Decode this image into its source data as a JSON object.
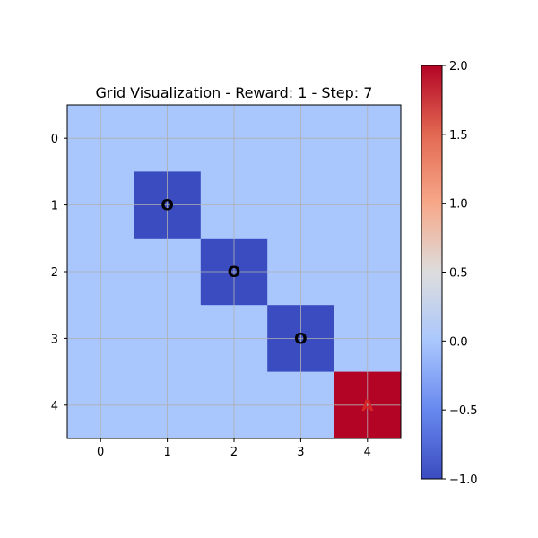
{
  "chart_data": {
    "type": "heatmap",
    "title": "Grid Visualization - Reward: 1 - Step: 7",
    "xlabel": "",
    "ylabel": "",
    "x_ticks": [
      "0",
      "1",
      "2",
      "3",
      "4"
    ],
    "y_ticks": [
      "0",
      "1",
      "2",
      "3",
      "4"
    ],
    "grid": true,
    "colormap": "coolwarm",
    "vmin": -1.0,
    "vmax": 2.0,
    "values": [
      [
        0,
        0,
        0,
        0,
        0
      ],
      [
        0,
        -1,
        0,
        0,
        0
      ],
      [
        0,
        0,
        -1,
        0,
        0
      ],
      [
        0,
        0,
        0,
        -1,
        0
      ],
      [
        0,
        0,
        0,
        0,
        2
      ]
    ],
    "annotations": [
      {
        "row": 1,
        "col": 1,
        "text": "O",
        "color": "#000000"
      },
      {
        "row": 2,
        "col": 2,
        "text": "O",
        "color": "#000000"
      },
      {
        "row": 3,
        "col": 3,
        "text": "O",
        "color": "#000000"
      },
      {
        "row": 4,
        "col": 4,
        "text": "A",
        "color": "#d62728"
      }
    ],
    "colorbar": {
      "ticks": [
        {
          "value": 2.0,
          "label": "2.0"
        },
        {
          "value": 1.5,
          "label": "1.5"
        },
        {
          "value": 1.0,
          "label": "1.0"
        },
        {
          "value": 0.5,
          "label": "0.5"
        },
        {
          "value": 0.0,
          "label": "0.0"
        },
        {
          "value": -0.5,
          "label": "−0.5"
        },
        {
          "value": -1.0,
          "label": "−1.0"
        }
      ]
    },
    "colors": {
      "low": "#3b4cc0",
      "zero": "#aac7fd",
      "high": "#b40426",
      "grid": "#b0b0b0"
    }
  }
}
